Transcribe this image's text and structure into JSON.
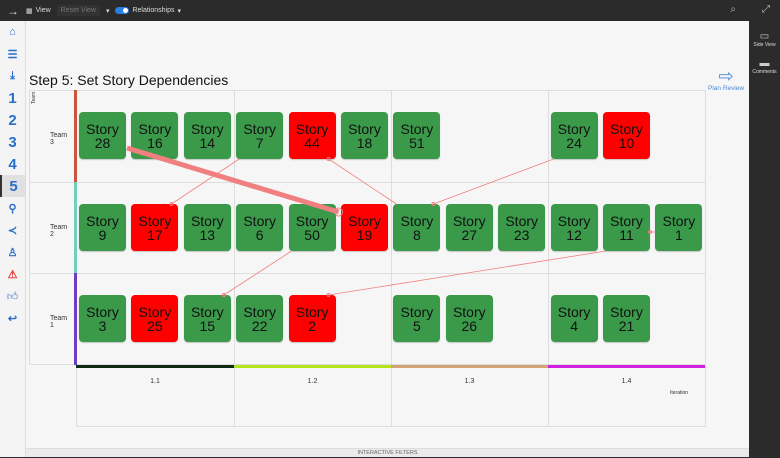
{
  "topbar": {
    "view": "View",
    "reset_view": "Reset View",
    "relationships": "Relationships"
  },
  "nav": {
    "steps": [
      "1",
      "2",
      "3",
      "4",
      "5"
    ]
  },
  "rightbar": {
    "side_view": "Side View",
    "comments": "Comments"
  },
  "page": {
    "title": "Step 5: Set Story Dependencies",
    "plan_review": "Plan Review",
    "team_axis": "Team",
    "iteration_axis": "Iteration",
    "filters": "INTERACTIVE FILTERS"
  },
  "iterations": [
    {
      "label": "1.1",
      "color": "#0d2a12"
    },
    {
      "label": "1.2",
      "color": "#b5e61d"
    },
    {
      "label": "1.3",
      "color": "#d4a373"
    },
    {
      "label": "1.4",
      "color": "#d21ee0"
    }
  ],
  "teams": [
    {
      "label": "Team 3",
      "color": "#c8553d",
      "stories": [
        {
          "label": "Story",
          "num": "28",
          "status": "green",
          "slot": 0
        },
        {
          "label": "Story",
          "num": "16",
          "status": "green",
          "slot": 1
        },
        {
          "label": "Story",
          "num": "14",
          "status": "green",
          "slot": 2
        },
        {
          "label": "Story",
          "num": "7",
          "status": "green",
          "slot": 3
        },
        {
          "label": "Story",
          "num": "44",
          "status": "red",
          "slot": 4
        },
        {
          "label": "Story",
          "num": "18",
          "status": "green",
          "slot": 5
        },
        {
          "label": "Story",
          "num": "51",
          "status": "green",
          "slot": 6
        },
        {
          "label": "Story",
          "num": "24",
          "status": "green",
          "slot": 9
        },
        {
          "label": "Story",
          "num": "10",
          "status": "red",
          "slot": 10
        }
      ]
    },
    {
      "label": "Team 2",
      "color": "#6fd1b8",
      "stories": [
        {
          "label": "Story",
          "num": "9",
          "status": "green",
          "slot": 0
        },
        {
          "label": "Story",
          "num": "17",
          "status": "red",
          "slot": 1
        },
        {
          "label": "Story",
          "num": "13",
          "status": "green",
          "slot": 2
        },
        {
          "label": "Story",
          "num": "6",
          "status": "green",
          "slot": 3
        },
        {
          "label": "Story",
          "num": "50",
          "status": "green",
          "slot": 4
        },
        {
          "label": "Story",
          "num": "19",
          "status": "red",
          "slot": 5
        },
        {
          "label": "Story",
          "num": "8",
          "status": "green",
          "slot": 6
        },
        {
          "label": "Story",
          "num": "27",
          "status": "green",
          "slot": 7
        },
        {
          "label": "Story",
          "num": "23",
          "status": "green",
          "slot": 8
        },
        {
          "label": "Story",
          "num": "12",
          "status": "green",
          "slot": 9
        },
        {
          "label": "Story",
          "num": "11",
          "status": "green",
          "slot": 10
        },
        {
          "label": "Story",
          "num": "1",
          "status": "green",
          "slot": 11
        }
      ]
    },
    {
      "label": "Team 1",
      "color": "#6a3fc0",
      "stories": [
        {
          "label": "Story",
          "num": "3",
          "status": "green",
          "slot": 0
        },
        {
          "label": "Story",
          "num": "25",
          "status": "red",
          "slot": 1
        },
        {
          "label": "Story",
          "num": "15",
          "status": "green",
          "slot": 2
        },
        {
          "label": "Story",
          "num": "22",
          "status": "green",
          "slot": 3
        },
        {
          "label": "Story",
          "num": "2",
          "status": "red",
          "slot": 4
        },
        {
          "label": "Story",
          "num": "5",
          "status": "green",
          "slot": 6
        },
        {
          "label": "Story",
          "num": "26",
          "status": "green",
          "slot": 7
        },
        {
          "label": "Story",
          "num": "4",
          "status": "green",
          "slot": 9
        },
        {
          "label": "Story",
          "num": "21",
          "status": "green",
          "slot": 10
        }
      ]
    }
  ],
  "dependencies": [
    {
      "from": "50",
      "to": "28",
      "strong": true
    },
    {
      "from": "17",
      "to": "7"
    },
    {
      "from": "44",
      "to": "8"
    },
    {
      "from": "8",
      "to": "24"
    },
    {
      "from": "15",
      "to": "50"
    },
    {
      "from": "2",
      "to": "11"
    },
    {
      "from": "11",
      "to": "1"
    }
  ],
  "colors": {
    "green": "#3a9a4a",
    "red": "#ff0000",
    "link": "#f08080"
  }
}
